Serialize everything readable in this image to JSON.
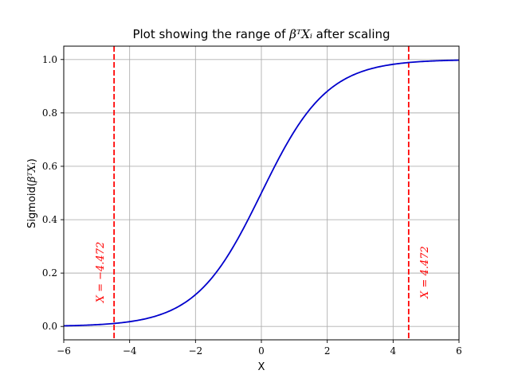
{
  "chart_data": {
    "type": "line",
    "title_prefix": "Plot showing the range of ",
    "title_math": "βᵀXᵢ",
    "title_suffix": " after scaling",
    "xlabel": "X",
    "ylabel_prefix": "Sigmoid(",
    "ylabel_math": "βᵀXᵢ",
    "ylabel_suffix": ")",
    "xlim": [
      -6,
      6
    ],
    "ylim": [
      -0.05,
      1.05
    ],
    "xticks": [
      -6,
      -4,
      -2,
      0,
      2,
      4,
      6
    ],
    "xtick_labels": [
      "−6",
      "−4",
      "−2",
      "0",
      "2",
      "4",
      "6"
    ],
    "yticks": [
      0.0,
      0.2,
      0.4,
      0.6,
      0.8,
      1.0
    ],
    "ytick_labels": [
      "0.0",
      "0.2",
      "0.4",
      "0.6",
      "0.8",
      "1.0"
    ],
    "grid": true,
    "series": [
      {
        "function": "sigmoid",
        "x_range": [
          -6,
          6
        ],
        "color": "#0000cc"
      }
    ],
    "vlines": [
      {
        "x": -4.472,
        "label": "X = −4.472",
        "color": "#ff0000",
        "style": "dashed"
      },
      {
        "x": 4.472,
        "label": "X = 4.472",
        "color": "#ff0000",
        "style": "dashed"
      }
    ]
  }
}
